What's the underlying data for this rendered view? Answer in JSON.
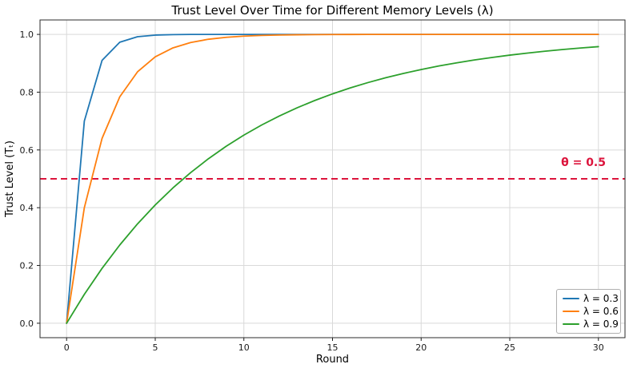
{
  "chart_data": {
    "type": "line",
    "title": "Trust Level Over Time for Different Memory Levels (λ)",
    "xlabel": "Round",
    "ylabel": "Trust Level (Tₜ)",
    "xlim": [
      -1.5,
      31.5
    ],
    "ylim": [
      -0.05,
      1.05
    ],
    "xticks": [
      0,
      5,
      10,
      15,
      20,
      25,
      30
    ],
    "xtick_labels": [
      "0",
      "5",
      "10",
      "15",
      "20",
      "25",
      "30"
    ],
    "yticks": [
      0.0,
      0.2,
      0.4,
      0.6,
      0.8,
      1.0
    ],
    "ytick_labels": [
      "0.0",
      "0.2",
      "0.4",
      "0.6",
      "0.8",
      "1.0"
    ],
    "grid": true,
    "grid_color": "#d9d9d9",
    "spine_color": "#2b2b2b",
    "legend_position": "lower right",
    "x": [
      0,
      1,
      2,
      3,
      4,
      5,
      6,
      7,
      8,
      9,
      10,
      11,
      12,
      13,
      14,
      15,
      16,
      17,
      18,
      19,
      20,
      21,
      22,
      23,
      24,
      25,
      26,
      27,
      28,
      29,
      30
    ],
    "series": [
      {
        "name": "λ = 0.3",
        "color": "#1f77b4",
        "values": [
          0.0,
          0.7,
          0.91,
          0.973,
          0.9919,
          0.9976,
          0.9993,
          0.9998,
          0.9999,
          1.0,
          1.0,
          1.0,
          1.0,
          1.0,
          1.0,
          1.0,
          1.0,
          1.0,
          1.0,
          1.0,
          1.0,
          1.0,
          1.0,
          1.0,
          1.0,
          1.0,
          1.0,
          1.0,
          1.0,
          1.0,
          1.0
        ]
      },
      {
        "name": "λ = 0.6",
        "color": "#ff7f0e",
        "values": [
          0.0,
          0.4,
          0.64,
          0.784,
          0.8704,
          0.9222,
          0.9533,
          0.972,
          0.9832,
          0.9899,
          0.994,
          0.9964,
          0.9978,
          0.9987,
          0.9992,
          0.9995,
          0.9997,
          0.9998,
          0.9999,
          0.9999,
          1.0,
          1.0,
          1.0,
          1.0,
          1.0,
          1.0,
          1.0,
          1.0,
          1.0,
          1.0,
          1.0
        ]
      },
      {
        "name": "λ = 0.9",
        "color": "#2ca02c",
        "values": [
          0.0,
          0.1,
          0.19,
          0.271,
          0.3439,
          0.4095,
          0.4686,
          0.5217,
          0.5695,
          0.6126,
          0.6513,
          0.6862,
          0.7176,
          0.7458,
          0.7712,
          0.7941,
          0.8147,
          0.8332,
          0.8499,
          0.8649,
          0.8784,
          0.8906,
          0.9015,
          0.9114,
          0.9202,
          0.9282,
          0.9354,
          0.9419,
          0.9477,
          0.9529,
          0.9576
        ]
      }
    ],
    "threshold": {
      "label": "θ = 0.5",
      "value": 0.5,
      "color": "#dc143c",
      "style": "dashed"
    }
  }
}
